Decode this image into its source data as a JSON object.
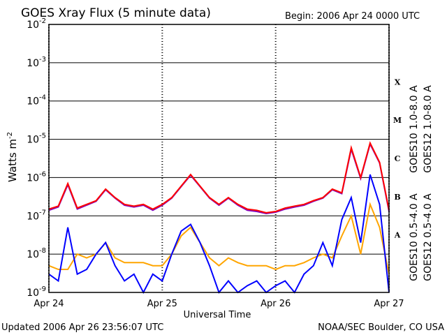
{
  "chart_data": {
    "type": "line",
    "title": "GOES Xray Flux (5 minute data)",
    "begin": "Begin:  2006 Apr 24 0000 UTC",
    "xlabel": "Universal Time",
    "ylabel": "Watts m",
    "ylabel_exponent": "-2",
    "footer_left": "Updated 2006 Apr 26 23:56:07 UTC",
    "footer_right": "NOAA/SEC Boulder, CO USA",
    "log_y": true,
    "grid": true,
    "xlim": [
      0,
      72
    ],
    "xticks": [
      {
        "value": 0,
        "label": "Apr 24"
      },
      {
        "value": 24,
        "label": "Apr 25"
      },
      {
        "value": 48,
        "label": "Apr 26"
      },
      {
        "value": 72,
        "label": "Apr 27"
      }
    ],
    "ylim": [
      1e-09,
      0.01
    ],
    "yticks": [
      {
        "value": 1e-09,
        "label": "10",
        "exponent": "-9"
      },
      {
        "value": 1e-08,
        "label": "10",
        "exponent": "-8"
      },
      {
        "value": 1e-07,
        "label": "10",
        "exponent": "-7"
      },
      {
        "value": 1e-06,
        "label": "10",
        "exponent": "-6"
      },
      {
        "value": 1e-05,
        "label": "10",
        "exponent": "-5"
      },
      {
        "value": 0.0001,
        "label": "10",
        "exponent": "-4"
      },
      {
        "value": 0.001,
        "label": "10",
        "exponent": "-3"
      },
      {
        "value": 0.01,
        "label": "10",
        "exponent": "-2"
      }
    ],
    "flare_classes": [
      {
        "label": "A",
        "value": 1e-08
      },
      {
        "label": "B",
        "value": 1e-07
      },
      {
        "label": "C",
        "value": 1e-06
      },
      {
        "label": "M",
        "value": 1e-05
      },
      {
        "label": "X",
        "value": 0.0001
      }
    ],
    "x": [
      0,
      2,
      4,
      6,
      8,
      10,
      12,
      14,
      16,
      18,
      20,
      22,
      24,
      26,
      28,
      30,
      32,
      34,
      36,
      38,
      40,
      42,
      44,
      46,
      48,
      50,
      52,
      54,
      56,
      58,
      60,
      62,
      64,
      66,
      68,
      70,
      72
    ],
    "series": [
      {
        "name": "GOES10 1.0-8.0 A",
        "color": "#8000c0",
        "values": [
          1.4e-07,
          1.7e-07,
          6.5e-07,
          1.5e-07,
          1.9e-07,
          2.4e-07,
          4.8e-07,
          2.9e-07,
          1.9e-07,
          1.7e-07,
          1.9e-07,
          1.4e-07,
          1.9e-07,
          2.9e-07,
          5.8e-07,
          1.15e-06,
          5.8e-07,
          2.9e-07,
          1.9e-07,
          2.9e-07,
          1.9e-07,
          1.4e-07,
          1.3e-07,
          1.15e-07,
          1.25e-07,
          1.5e-07,
          1.7e-07,
          1.9e-07,
          2.4e-07,
          2.9e-07,
          4.8e-07,
          3.8e-07,
          5.5e-06,
          9.5e-07,
          7.5e-06,
          2.4e-06,
          1.3e-07
        ]
      },
      {
        "name": "GOES12 1.0-8.0 A",
        "color": "#ff0000",
        "values": [
          1.5e-07,
          1.8e-07,
          7e-07,
          1.6e-07,
          2e-07,
          2.5e-07,
          5e-07,
          3e-07,
          2e-07,
          1.8e-07,
          2e-07,
          1.5e-07,
          2e-07,
          3e-07,
          6e-07,
          1.2e-06,
          6e-07,
          3e-07,
          2e-07,
          3e-07,
          2e-07,
          1.5e-07,
          1.4e-07,
          1.2e-07,
          1.3e-07,
          1.6e-07,
          1.8e-07,
          2e-07,
          2.5e-07,
          3e-07,
          5e-07,
          4e-07,
          6e-06,
          1e-06,
          8e-06,
          2.5e-06,
          1.4e-07
        ]
      },
      {
        "name": "GOES10 0.5-4.0 A",
        "color": "#ffa500",
        "values": [
          5e-09,
          4e-09,
          4e-09,
          1e-08,
          8e-09,
          1e-08,
          2e-08,
          8e-09,
          6e-09,
          6e-09,
          6e-09,
          5e-09,
          5e-09,
          1e-08,
          3e-08,
          5e-08,
          2e-08,
          8e-09,
          5e-09,
          8e-09,
          6e-09,
          5e-09,
          5e-09,
          5e-09,
          4e-09,
          5e-09,
          5e-09,
          6e-09,
          8e-09,
          1e-08,
          8e-09,
          3e-08,
          1e-07,
          1e-08,
          2e-07,
          5e-08,
          3e-09
        ]
      },
      {
        "name": "GOES12 0.5-4.0 A",
        "color": "#0000ff",
        "values": [
          3e-09,
          2e-09,
          5e-08,
          3e-09,
          4e-09,
          1e-08,
          2e-08,
          5e-09,
          2e-09,
          3e-09,
          1e-09,
          3e-09,
          2e-09,
          1e-08,
          4e-08,
          6e-08,
          2e-08,
          5e-09,
          1e-09,
          2e-09,
          1e-09,
          1.5e-09,
          2e-09,
          1e-09,
          1.5e-09,
          2e-09,
          1e-09,
          3e-09,
          5e-09,
          2e-08,
          5e-09,
          8e-08,
          3e-07,
          2e-08,
          1.2e-06,
          2e-07,
          1e-09
        ]
      }
    ]
  }
}
